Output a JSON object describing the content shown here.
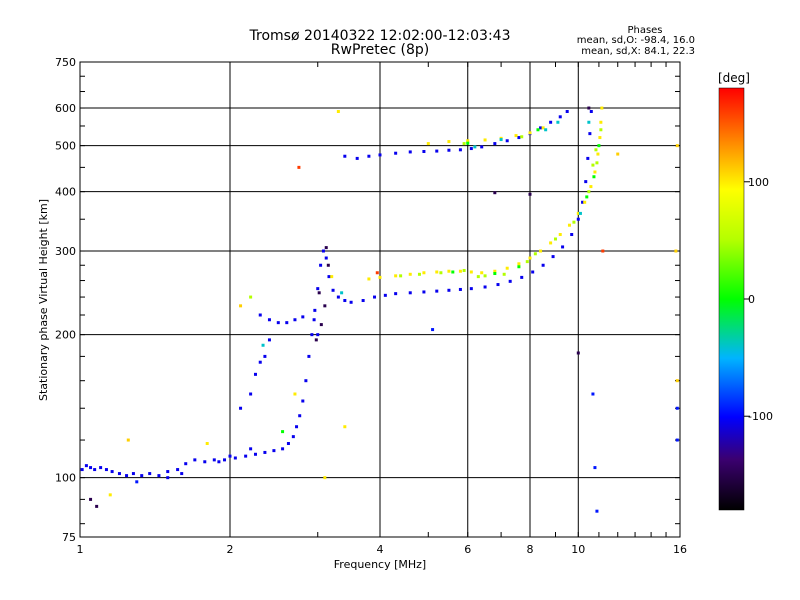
{
  "chart_data": {
    "type": "scatter",
    "title": "Tromsø 20140322 12:02:00-12:03:43",
    "subtitle": "RwPretec (8p)",
    "xlabel": "Frequency [MHz]",
    "ylabel": "Stationary phase Virtual Height [km]",
    "x_scale": "log",
    "y_scale": "log",
    "xlim": [
      1,
      16
    ],
    "ylim": [
      75,
      750
    ],
    "x_ticks": [
      1,
      2,
      4,
      6,
      8,
      10,
      16
    ],
    "x_tick_labels": [
      "1",
      "2",
      "4",
      "6",
      "8",
      "10",
      "16"
    ],
    "y_ticks": [
      75,
      100,
      200,
      300,
      400,
      500,
      600,
      750
    ],
    "y_tick_labels": [
      "75",
      "100",
      "200",
      "300",
      "400",
      "500",
      "600",
      "750"
    ],
    "grid": true,
    "phases_panel": {
      "title": "Phases",
      "line_o": "mean, sd,O: -98.4, 16.0",
      "line_x": "mean, sd,X: 84.1, 22.3"
    },
    "colorbar": {
      "label": "[deg]",
      "range": [
        -180,
        180
      ],
      "ticks": [
        100,
        0,
        -100
      ],
      "tick_labels": [
        "100",
        "0",
        "-100"
      ]
    },
    "color_mapping": "phase in degrees, rainbow: -180 black, -100 blue, 0 green, 100 yellow, 180 red",
    "series": [
      {
        "phase": -105,
        "points": [
          [
            1.01,
            104
          ],
          [
            1.03,
            106
          ],
          [
            1.05,
            105
          ],
          [
            1.07,
            104
          ],
          [
            1.1,
            105
          ],
          [
            1.13,
            104
          ],
          [
            1.16,
            103
          ],
          [
            1.2,
            102
          ],
          [
            1.24,
            101
          ],
          [
            1.28,
            102
          ],
          [
            1.33,
            101
          ],
          [
            1.38,
            102
          ],
          [
            1.44,
            101
          ],
          [
            1.5,
            103
          ],
          [
            1.57,
            104
          ],
          [
            1.63,
            107
          ],
          [
            1.7,
            109
          ],
          [
            1.78,
            108
          ],
          [
            1.86,
            109
          ],
          [
            1.95,
            109
          ],
          [
            2.05,
            110
          ],
          [
            2.15,
            111
          ],
          [
            2.25,
            112
          ],
          [
            2.35,
            113
          ],
          [
            2.45,
            114
          ],
          [
            2.55,
            115
          ],
          [
            2.62,
            118
          ],
          [
            2.68,
            122
          ],
          [
            2.72,
            128
          ],
          [
            2.76,
            135
          ],
          [
            2.8,
            145
          ],
          [
            2.84,
            160
          ],
          [
            2.88,
            180
          ],
          [
            2.92,
            200
          ],
          [
            2.96,
            225
          ],
          [
            3.0,
            250
          ],
          [
            3.04,
            280
          ],
          [
            3.08,
            300
          ],
          [
            3.12,
            290
          ],
          [
            3.16,
            265
          ],
          [
            3.22,
            248
          ],
          [
            3.3,
            240
          ],
          [
            3.4,
            236
          ],
          [
            3.5,
            234
          ],
          [
            3.7,
            236
          ],
          [
            3.9,
            240
          ],
          [
            4.1,
            242
          ],
          [
            4.3,
            244
          ],
          [
            4.6,
            245
          ],
          [
            4.9,
            246
          ],
          [
            5.2,
            247
          ],
          [
            5.5,
            248
          ],
          [
            5.8,
            249
          ],
          [
            6.1,
            250
          ],
          [
            6.5,
            252
          ],
          [
            6.9,
            255
          ],
          [
            7.3,
            259
          ],
          [
            7.7,
            264
          ],
          [
            8.1,
            271
          ],
          [
            8.5,
            280
          ],
          [
            8.9,
            292
          ],
          [
            9.3,
            306
          ],
          [
            9.7,
            325
          ],
          [
            10.0,
            350
          ],
          [
            10.2,
            380
          ],
          [
            10.35,
            420
          ],
          [
            10.45,
            470
          ],
          [
            10.55,
            530
          ],
          [
            10.62,
            590
          ],
          [
            3.4,
            475
          ],
          [
            3.6,
            470
          ],
          [
            3.8,
            475
          ],
          [
            4.0,
            478
          ],
          [
            4.3,
            482
          ],
          [
            4.6,
            485
          ],
          [
            4.9,
            486
          ],
          [
            5.2,
            487
          ],
          [
            5.5,
            489
          ],
          [
            5.8,
            490
          ],
          [
            6.1,
            493
          ],
          [
            6.4,
            497
          ],
          [
            6.8,
            505
          ],
          [
            7.2,
            512
          ],
          [
            7.6,
            520
          ],
          [
            8.0,
            530
          ],
          [
            8.4,
            545
          ],
          [
            8.8,
            560
          ],
          [
            9.2,
            575
          ],
          [
            9.5,
            590
          ],
          [
            2.1,
            140
          ],
          [
            2.2,
            150
          ],
          [
            2.25,
            165
          ],
          [
            2.3,
            175
          ],
          [
            2.35,
            180
          ],
          [
            2.4,
            195
          ],
          [
            2.3,
            220
          ],
          [
            2.4,
            215
          ],
          [
            2.5,
            212
          ],
          [
            2.6,
            212
          ],
          [
            2.7,
            215
          ],
          [
            2.8,
            218
          ],
          [
            1.5,
            100
          ],
          [
            1.6,
            102
          ],
          [
            1.9,
            108
          ],
          [
            2.0,
            111
          ],
          [
            2.2,
            115
          ],
          [
            3.0,
            200
          ],
          [
            2.95,
            215
          ]
        ]
      },
      {
        "phase": 100,
        "points": [
          [
            3.8,
            262
          ],
          [
            4.0,
            264
          ],
          [
            4.3,
            266
          ],
          [
            4.6,
            268
          ],
          [
            4.9,
            270
          ],
          [
            5.2,
            271
          ],
          [
            5.5,
            272
          ],
          [
            5.8,
            272
          ],
          [
            6.1,
            271
          ],
          [
            6.4,
            270
          ],
          [
            6.8,
            272
          ],
          [
            7.2,
            276
          ],
          [
            7.6,
            282
          ],
          [
            8.0,
            290
          ],
          [
            8.4,
            300
          ],
          [
            8.8,
            312
          ],
          [
            9.2,
            325
          ],
          [
            9.6,
            340
          ],
          [
            10.0,
            360
          ],
          [
            10.3,
            380
          ],
          [
            10.6,
            410
          ],
          [
            10.8,
            440
          ],
          [
            10.95,
            480
          ],
          [
            11.05,
            520
          ],
          [
            11.1,
            560
          ],
          [
            11.15,
            600
          ],
          [
            5.0,
            505
          ],
          [
            5.5,
            510
          ],
          [
            6.0,
            512
          ],
          [
            6.5,
            514
          ],
          [
            7.0,
            518
          ],
          [
            7.5,
            525
          ],
          [
            8.0,
            532
          ],
          [
            8.5,
            545
          ],
          [
            3.4,
            128
          ],
          [
            1.15,
            92
          ],
          [
            1.8,
            118
          ],
          [
            2.7,
            150
          ],
          [
            3.2,
            265
          ],
          [
            3.3,
            590
          ],
          [
            3.1,
            100
          ]
        ]
      },
      {
        "phase": 50,
        "points": [
          [
            4.4,
            266
          ],
          [
            4.8,
            268
          ],
          [
            5.3,
            270
          ],
          [
            5.9,
            273
          ],
          [
            6.5,
            266
          ],
          [
            7.1,
            268
          ],
          [
            8.2,
            296
          ],
          [
            9.0,
            318
          ],
          [
            9.8,
            345
          ],
          [
            10.5,
            400
          ],
          [
            10.9,
            460
          ],
          [
            11.1,
            540
          ],
          [
            6.3,
            265
          ],
          [
            7.9,
            285
          ],
          [
            2.2,
            240
          ],
          [
            10.7,
            455
          ],
          [
            10.85,
            490
          ],
          [
            5.9,
            505
          ],
          [
            7.7,
            522
          ]
        ]
      },
      {
        "phase": 0,
        "points": [
          [
            5.6,
            271
          ],
          [
            6.8,
            269
          ],
          [
            7.6,
            278
          ],
          [
            10.4,
            390
          ],
          [
            10.75,
            430
          ],
          [
            11.0,
            500
          ],
          [
            6.0,
            506
          ],
          [
            8.3,
            540
          ],
          [
            2.55,
            125
          ]
        ]
      },
      {
        "phase": -40,
        "points": [
          [
            8.6,
            540
          ],
          [
            9.1,
            560
          ],
          [
            10.1,
            360
          ],
          [
            10.5,
            560
          ],
          [
            6.2,
            497
          ],
          [
            3.35,
            245
          ],
          [
            2.33,
            190
          ],
          [
            7.0,
            515
          ]
        ]
      },
      {
        "phase": -150,
        "points": [
          [
            1.05,
            90
          ],
          [
            1.08,
            87
          ],
          [
            3.05,
            210
          ],
          [
            3.1,
            230
          ],
          [
            3.15,
            280
          ],
          [
            2.98,
            195
          ],
          [
            10.0,
            183
          ],
          [
            8.0,
            395
          ],
          [
            6.8,
            398
          ],
          [
            10.5,
            600
          ],
          [
            3.02,
            245
          ],
          [
            3.12,
            305
          ]
        ]
      },
      {
        "phase": 160,
        "points": [
          [
            2.75,
            450
          ],
          [
            11.2,
            300
          ],
          [
            3.95,
            270
          ]
        ]
      },
      {
        "phase": -95,
        "points": [
          [
            10.7,
            150
          ],
          [
            10.8,
            105
          ],
          [
            10.9,
            85
          ],
          [
            15.8,
            140
          ],
          [
            15.8,
            120
          ],
          [
            5.1,
            205
          ],
          [
            1.3,
            98
          ]
        ]
      },
      {
        "phase": 110,
        "points": [
          [
            15.8,
            160
          ],
          [
            15.7,
            300
          ],
          [
            15.8,
            500
          ],
          [
            12.0,
            480
          ],
          [
            1.25,
            120
          ],
          [
            2.1,
            230
          ]
        ]
      }
    ]
  }
}
